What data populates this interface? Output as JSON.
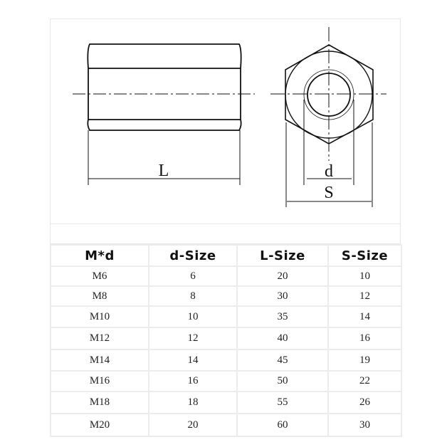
{
  "drawing": {
    "labels": {
      "length": "L",
      "inner_diameter": "d",
      "across_flats": "S"
    }
  },
  "table": {
    "headers": [
      "M*d",
      "d-Size",
      "L-Size",
      "S-Size"
    ],
    "rows": [
      [
        "M6",
        "6",
        "20",
        "10"
      ],
      [
        "M8",
        "8",
        "30",
        "12"
      ],
      [
        "M10",
        "10",
        "35",
        "14"
      ],
      [
        "M12",
        "12",
        "40",
        "16"
      ],
      [
        "M14",
        "14",
        "45",
        "19"
      ],
      [
        "M16",
        "16",
        "50",
        "22"
      ],
      [
        "M18",
        "18",
        "55",
        "26"
      ],
      [
        "M20",
        "20",
        "60",
        "30"
      ]
    ]
  }
}
